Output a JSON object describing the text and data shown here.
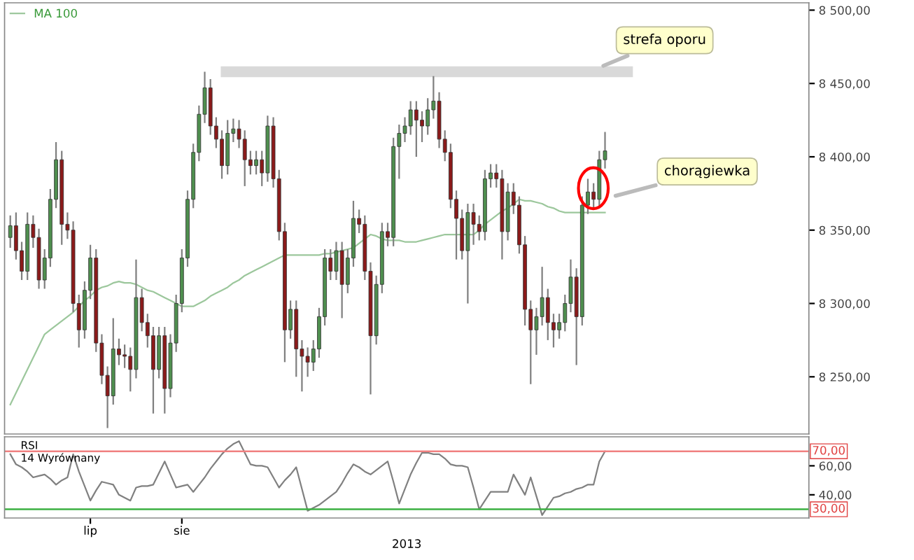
{
  "chart_data": [
    {
      "type": "candlestick",
      "tick_labels": "y",
      "legend": "top left",
      "categories": [
        null,
        null,
        null,
        null,
        null,
        null,
        null,
        null,
        null,
        null,
        null,
        null,
        null,
        null,
        null,
        null,
        null,
        null,
        null,
        null,
        null,
        null,
        null,
        null,
        null,
        null,
        null,
        null,
        null,
        null,
        null,
        null,
        null,
        null,
        null,
        null,
        null,
        null,
        null,
        null,
        null,
        null,
        null,
        null,
        null,
        null,
        null,
        null,
        null,
        null,
        null,
        null,
        null,
        null,
        null,
        null,
        null,
        null,
        null,
        null,
        null,
        null,
        null,
        null,
        null,
        null,
        null,
        null,
        null,
        null,
        null,
        null,
        null,
        null,
        null,
        null,
        null,
        null,
        null,
        null,
        null,
        null,
        null,
        null,
        null,
        null,
        null,
        null,
        null,
        null,
        null,
        null,
        null,
        null,
        null,
        null,
        null,
        null,
        null,
        null,
        null,
        null,
        null,
        null,
        null
      ],
      "colors": [
        "#4f8f4f",
        "#8b1a1a",
        "#8b1a1a",
        "#4f8f4f",
        "#8b1a1a",
        "#8b1a1a",
        "#4f8f4f",
        "#4f8f4f",
        "#4f8f4f",
        "#8b1a1a",
        "#8b1a1a",
        "#8b1a1a",
        "#8b1a1a",
        "#4f8f4f",
        "#4f8f4f",
        "#8b1a1a",
        "#8b1a1a",
        "#8b1a1a",
        "#4f8f4f",
        "#8b1a1a",
        "#8b1a1a",
        "#8b1a1a",
        "#4f8f4f",
        "#8b1a1a",
        "#8b1a1a",
        "#8b1a1a",
        "#4f8f4f",
        "#8b1a1a",
        "#4f8f4f",
        "#4f8f4f",
        "#4f8f4f",
        "#4f8f4f",
        "#4f8f4f",
        "#4f8f4f",
        "#4f8f4f",
        "#8b1a1a",
        "#8b1a1a",
        "#8b1a1a",
        "#4f8f4f",
        "#4f8f4f",
        "#8b1a1a",
        "#8b1a1a",
        "#8b1a1a",
        "#4f8f4f",
        "#8b1a1a",
        "#4f8f4f",
        "#8b1a1a",
        "#8b1a1a",
        "#8b1a1a",
        "#4f8f4f",
        "#8b1a1a",
        "#8b1a1a",
        "#8b1a1a",
        "#4f8f4f",
        "#4f8f4f",
        "#4f8f4f",
        "#8b1a1a",
        "#4f8f4f",
        "#8b1a1a",
        "#4f8f4f",
        "#4f8f4f",
        "#8b1a1a",
        "#8b1a1a",
        "#8b1a1a",
        "#4f8f4f",
        "#4f8f4f",
        "#8b1a1a",
        "#4f8f4f",
        "#4f8f4f",
        "#4f8f4f",
        "#4f8f4f",
        "#8b1a1a",
        "#8b1a1a",
        "#4f8f4f",
        "#4f8f4f",
        "#8b1a1a",
        "#8b1a1a",
        "#8b1a1a",
        "#8b1a1a",
        "#8b1a1a",
        "#4f8f4f",
        "#8b1a1a",
        "#8b1a1a",
        "#4f8f4f",
        "#4f8f4f",
        "#8b1a1a",
        "#8b1a1a",
        "#4f8f4f",
        "#8b1a1a",
        "#8b1a1a",
        "#8b1a1a",
        "#8b1a1a",
        "#4f8f4f",
        "#4f8f4f",
        "#8b1a1a",
        "#8b1a1a",
        "#4f8f4f",
        "#4f8f4f",
        "#4f8f4f",
        "#8b1a1a",
        "#4f8f4f",
        "#4f8f4f",
        "#8b1a1a",
        "#4f8f4f",
        "#4f8f4f"
      ],
      "ohlc": [
        [
          8345,
          8360,
          8338,
          8353
        ],
        [
          8353,
          8362,
          8330,
          8336
        ],
        [
          8336,
          8342,
          8316,
          8322
        ],
        [
          8322,
          8362,
          8316,
          8354
        ],
        [
          8354,
          8360,
          8338,
          8345
        ],
        [
          8345,
          8351,
          8310,
          8316
        ],
        [
          8316,
          8337,
          8310,
          8331
        ],
        [
          8331,
          8378,
          8325,
          8371
        ],
        [
          8371,
          8410,
          8365,
          8398
        ],
        [
          8398,
          8404,
          8340,
          8354
        ],
        [
          8354,
          8362,
          8344,
          8350
        ],
        [
          8350,
          8356,
          8294,
          8300
        ],
        [
          8300,
          8306,
          8270,
          8282
        ],
        [
          8282,
          8315,
          8276,
          8309
        ],
        [
          8309,
          8340,
          8303,
          8331
        ],
        [
          8331,
          8337,
          8267,
          8273
        ],
        [
          8273,
          8279,
          8245,
          8251
        ],
        [
          8251,
          8257,
          8215,
          8237
        ],
        [
          8237,
          8290,
          8231,
          8269
        ],
        [
          8269,
          8276,
          8258,
          8265
        ],
        [
          8265,
          8272,
          8256,
          8264
        ],
        [
          8264,
          8270,
          8240,
          8255
        ],
        [
          8255,
          8330,
          8249,
          8304
        ],
        [
          8304,
          8310,
          8281,
          8287
        ],
        [
          8287,
          8293,
          8270,
          8278
        ],
        [
          8278,
          8284,
          8225,
          8255
        ],
        [
          8255,
          8284,
          8249,
          8278
        ],
        [
          8278,
          8284,
          8225,
          8242
        ],
        [
          8242,
          8279,
          8236,
          8273
        ],
        [
          8273,
          8306,
          8267,
          8300
        ],
        [
          8300,
          8337,
          8294,
          8331
        ],
        [
          8331,
          8377,
          8325,
          8371
        ],
        [
          8371,
          8409,
          8365,
          8403
        ],
        [
          8403,
          8435,
          8397,
          8429
        ],
        [
          8429,
          8458,
          8423,
          8447
        ],
        [
          8447,
          8453,
          8415,
          8421
        ],
        [
          8421,
          8427,
          8406,
          8412
        ],
        [
          8412,
          8418,
          8385,
          8394
        ],
        [
          8394,
          8425,
          8388,
          8416
        ],
        [
          8416,
          8426,
          8410,
          8419
        ],
        [
          8419,
          8425,
          8406,
          8412
        ],
        [
          8412,
          8418,
          8380,
          8398
        ],
        [
          8398,
          8404,
          8388,
          8394
        ],
        [
          8394,
          8404,
          8388,
          8398
        ],
        [
          8398,
          8404,
          8380,
          8389
        ],
        [
          8389,
          8428,
          8383,
          8421
        ],
        [
          8421,
          8427,
          8379,
          8385
        ],
        [
          8385,
          8391,
          8343,
          8349
        ],
        [
          8349,
          8355,
          8260,
          8282
        ],
        [
          8282,
          8302,
          8276,
          8296
        ],
        [
          8296,
          8302,
          8250,
          8269
        ],
        [
          8269,
          8275,
          8240,
          8264
        ],
        [
          8264,
          8270,
          8250,
          8260
        ],
        [
          8260,
          8275,
          8254,
          8269
        ],
        [
          8269,
          8297,
          8263,
          8291
        ],
        [
          8291,
          8337,
          8285,
          8331
        ],
        [
          8331,
          8337,
          8316,
          8322
        ],
        [
          8322,
          8342,
          8316,
          8336
        ],
        [
          8336,
          8342,
          8290,
          8313
        ],
        [
          8313,
          8337,
          8307,
          8331
        ],
        [
          8331,
          8370,
          8325,
          8358
        ],
        [
          8358,
          8364,
          8348,
          8354
        ],
        [
          8354,
          8360,
          8316,
          8322
        ],
        [
          8322,
          8328,
          8238,
          8278
        ],
        [
          8278,
          8319,
          8272,
          8313
        ],
        [
          8313,
          8355,
          8307,
          8349
        ],
        [
          8349,
          8355,
          8339,
          8345
        ],
        [
          8345,
          8413,
          8339,
          8407
        ],
        [
          8407,
          8422,
          8385,
          8416
        ],
        [
          8416,
          8427,
          8410,
          8421
        ],
        [
          8421,
          8438,
          8415,
          8432
        ],
        [
          8432,
          8438,
          8400,
          8425
        ],
        [
          8425,
          8431,
          8410,
          8421
        ],
        [
          8421,
          8440,
          8415,
          8432
        ],
        [
          8432,
          8455,
          8426,
          8438
        ],
        [
          8438,
          8444,
          8406,
          8412
        ],
        [
          8412,
          8418,
          8397,
          8403
        ],
        [
          8403,
          8409,
          8365,
          8371
        ],
        [
          8371,
          8377,
          8330,
          8358
        ],
        [
          8358,
          8364,
          8330,
          8336
        ],
        [
          8336,
          8368,
          8300,
          8362
        ],
        [
          8362,
          8368,
          8340,
          8354
        ],
        [
          8354,
          8360,
          8343,
          8349
        ],
        [
          8349,
          8391,
          8343,
          8385
        ],
        [
          8385,
          8395,
          8379,
          8389
        ],
        [
          8389,
          8395,
          8379,
          8385
        ],
        [
          8385,
          8391,
          8330,
          8349
        ],
        [
          8349,
          8382,
          8343,
          8376
        ],
        [
          8376,
          8382,
          8361,
          8367
        ],
        [
          8367,
          8373,
          8334,
          8340
        ],
        [
          8340,
          8346,
          8285,
          8296
        ],
        [
          8296,
          8302,
          8245,
          8282
        ],
        [
          8282,
          8297,
          8265,
          8291
        ],
        [
          8291,
          8325,
          8285,
          8304
        ],
        [
          8304,
          8310,
          8275,
          8287
        ],
        [
          8287,
          8293,
          8270,
          8282
        ],
        [
          8282,
          8293,
          8276,
          8287
        ],
        [
          8287,
          8306,
          8281,
          8300
        ],
        [
          8300,
          8330,
          8294,
          8318
        ],
        [
          8318,
          8324,
          8258,
          8291
        ],
        [
          8291,
          8373,
          8285,
          8367
        ],
        [
          8367,
          8385,
          8361,
          8376
        ],
        [
          8376,
          8382,
          8365,
          8371
        ],
        [
          8371,
          8404,
          8365,
          8398
        ],
        [
          8398,
          8417,
          8392,
          8404
        ]
      ],
      "series": [
        {
          "name": "MA 100",
          "type": "line",
          "color": "#9cc79c",
          "values": [
            8231,
            8239,
            8247,
            8255,
            8263,
            8271,
            8279,
            8282,
            8285,
            8288,
            8291,
            8294,
            8298,
            8302,
            8305,
            8309,
            8311,
            8312,
            8314,
            8315,
            8314,
            8314,
            8313,
            8311,
            8309,
            8308,
            8306,
            8304,
            8302,
            8300,
            8298,
            8298,
            8298,
            8300,
            8302,
            8305,
            8307,
            8309,
            8311,
            8314,
            8316,
            8319,
            8321,
            8323,
            8325,
            8327,
            8329,
            8331,
            8333,
            8333,
            8333,
            8333,
            8333,
            8333,
            8333,
            8334,
            8334,
            8335,
            8336,
            8337,
            8338,
            8341,
            8344,
            8347,
            8346,
            8344,
            8343,
            8343,
            8343,
            8342,
            8342,
            8342,
            8343,
            8344,
            8345,
            8346,
            8347,
            8347,
            8347,
            8347,
            8347,
            8347,
            8350,
            8354,
            8357,
            8360,
            8363,
            8365,
            8368,
            8371,
            8370,
            8370,
            8369,
            8368,
            8366,
            8365,
            8363,
            8362,
            8362,
            8362,
            8362,
            8362,
            8362,
            8362,
            8362
          ]
        }
      ],
      "ylim": [
        8211,
        8505
      ],
      "yticks": [
        {
          "value": 8250,
          "label": "8 250,00"
        },
        {
          "value": 8300,
          "label": "8 300,00"
        },
        {
          "value": 8350,
          "label": "8 350,00"
        },
        {
          "value": 8400,
          "label": "8 400,00"
        },
        {
          "value": 8450,
          "label": "8 450,00"
        },
        {
          "value": 8500,
          "label": "8 500,00"
        }
      ],
      "bands": [
        {
          "axis": "y",
          "from": 8455,
          "to": 8461,
          "label": "strefa oporu",
          "color": "#d9d9d9"
        }
      ],
      "annotations": [
        "chorągiewka"
      ]
    },
    {
      "type": "line",
      "title": "RSI",
      "subtitle": "14 Wyrównany",
      "xlabel": "2013",
      "categories": [
        null,
        null,
        null,
        null,
        null,
        null,
        null,
        null,
        null,
        null,
        null,
        null,
        null,
        null,
        "lip",
        null,
        null,
        null,
        null,
        null,
        null,
        null,
        null,
        null,
        null,
        null,
        null,
        null,
        null,
        null,
        "sie",
        null,
        null,
        null,
        null,
        null,
        null,
        null,
        null,
        null,
        null,
        null,
        null,
        null,
        null,
        null,
        null,
        null,
        null,
        null,
        null,
        null,
        null,
        null,
        null,
        null,
        null,
        null,
        null,
        null,
        null,
        null,
        null,
        null,
        null,
        null,
        null,
        null,
        null,
        null,
        null,
        null,
        null,
        null,
        null,
        null,
        null,
        null,
        null,
        null,
        null,
        null,
        null,
        null,
        null,
        null,
        null,
        null,
        null,
        null,
        null,
        null,
        null,
        null,
        null,
        null,
        null,
        null,
        null,
        null,
        null,
        null,
        null,
        null,
        null
      ],
      "series": [
        {
          "color": "#808080",
          "values": [
            68,
            61,
            59,
            56,
            52,
            53,
            54,
            51,
            47,
            50,
            52,
            68,
            56,
            46,
            36,
            43,
            49,
            48,
            47,
            40,
            38,
            36,
            45,
            46,
            46,
            47,
            55,
            63,
            54,
            45,
            46,
            47,
            42,
            47,
            52,
            58,
            63,
            68,
            72,
            75,
            77,
            69,
            61,
            60,
            60,
            59,
            52,
            45,
            50,
            54,
            59,
            44,
            29,
            31,
            33,
            36,
            39,
            42,
            48,
            55,
            61,
            59,
            56,
            54,
            57,
            60,
            63,
            49,
            34,
            44,
            54,
            62,
            69,
            69,
            68,
            68,
            65,
            61,
            60,
            60,
            59,
            45,
            30,
            36,
            42,
            42,
            42,
            42,
            54,
            47,
            40,
            52,
            39,
            26,
            32,
            38,
            39,
            41,
            42,
            44,
            45,
            47,
            47,
            63,
            70
          ]
        }
      ],
      "ylim": [
        24,
        80
      ],
      "yticks": [
        {
          "value": 40,
          "label": "40,00"
        },
        {
          "value": 60,
          "label": "60,00"
        }
      ],
      "ref_lines": [
        {
          "axis": "y",
          "value": 70,
          "label": "70,00",
          "color": "#f08080"
        },
        {
          "axis": "y",
          "value": 30,
          "label": "30,00",
          "color": "#3cb043"
        }
      ]
    }
  ]
}
